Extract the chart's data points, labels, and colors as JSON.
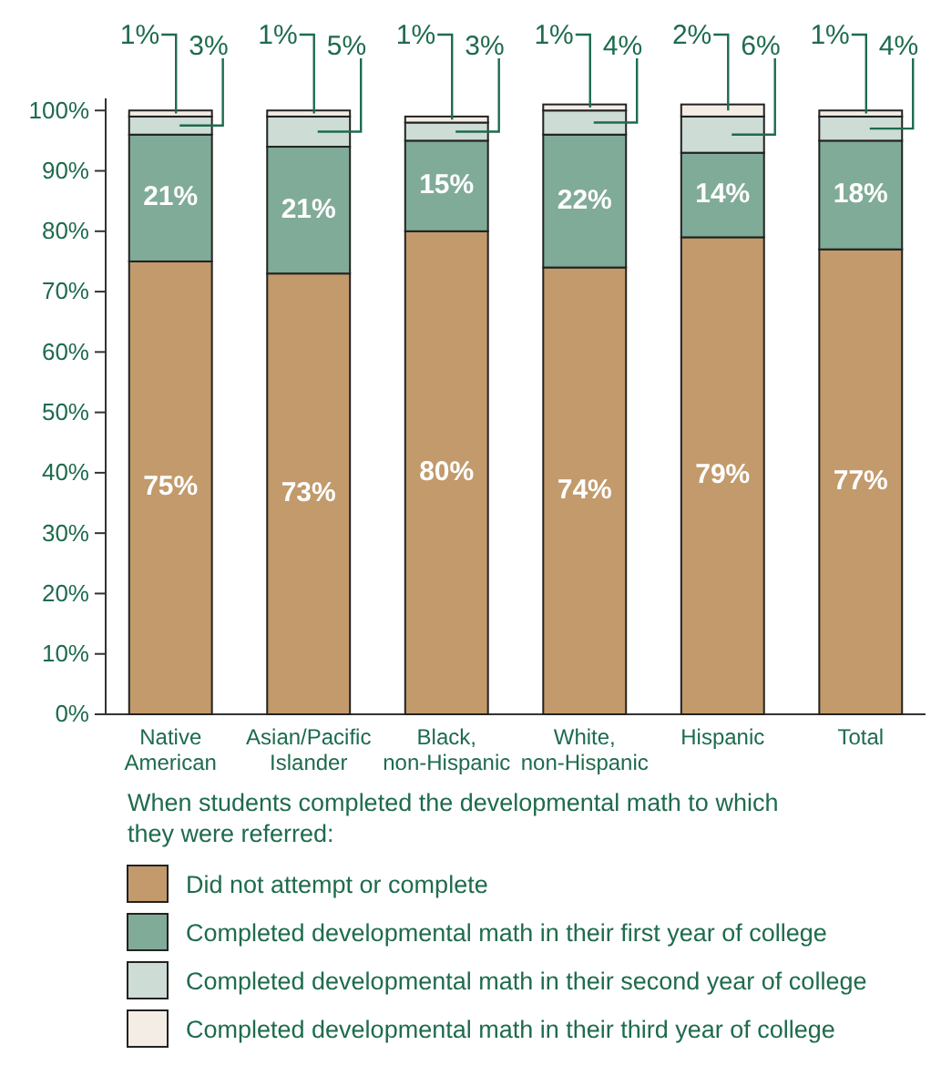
{
  "chart_data": {
    "type": "bar",
    "stacked": true,
    "data_labels": true,
    "categories": [
      "Native American",
      "Asian/Pacific Islander",
      "Black, non-Hispanic",
      "White, non-Hispanic",
      "Hispanic",
      "Total"
    ],
    "series": [
      {
        "name": "Did not attempt or complete",
        "color": "#c29a6b",
        "values": [
          75,
          73,
          80,
          74,
          79,
          77
        ],
        "value_labels": [
          "75%",
          "73%",
          "80%",
          "74%",
          "79%",
          "77%"
        ]
      },
      {
        "name": "Completed developmental math in their first year of college",
        "color": "#80ab98",
        "values": [
          21,
          21,
          15,
          22,
          14,
          18
        ],
        "value_labels": [
          "21%",
          "21%",
          "15%",
          "22%",
          "14%",
          "18%"
        ]
      },
      {
        "name": "Completed developmental math in their second year of college",
        "color": "#cddcd5",
        "values": [
          3,
          5,
          3,
          4,
          6,
          4
        ],
        "value_labels": [
          "3%",
          "5%",
          "3%",
          "4%",
          "6%",
          "4%"
        ]
      },
      {
        "name": "Completed developmental math in their third year of college",
        "color": "#f3ede6",
        "values": [
          1,
          1,
          1,
          1,
          2,
          1
        ],
        "value_labels": [
          "1%",
          "1%",
          "1%",
          "1%",
          "2%",
          "1%"
        ]
      }
    ],
    "ylim": [
      0,
      102
    ],
    "yticks": [
      {
        "value": 0,
        "label": "0%"
      },
      {
        "value": 10,
        "label": "10%"
      },
      {
        "value": 20,
        "label": "20%"
      },
      {
        "value": 30,
        "label": "30%"
      },
      {
        "value": 40,
        "label": "40%"
      },
      {
        "value": 50,
        "label": "50%"
      },
      {
        "value": 60,
        "label": "60%"
      },
      {
        "value": 70,
        "label": "70%"
      },
      {
        "value": 80,
        "label": "80%"
      },
      {
        "value": 90,
        "label": "90%"
      },
      {
        "value": 100,
        "label": "100%"
      }
    ],
    "legend": "bottom",
    "legend_title": "When students completed the developmental math to which they were referred:"
  }
}
